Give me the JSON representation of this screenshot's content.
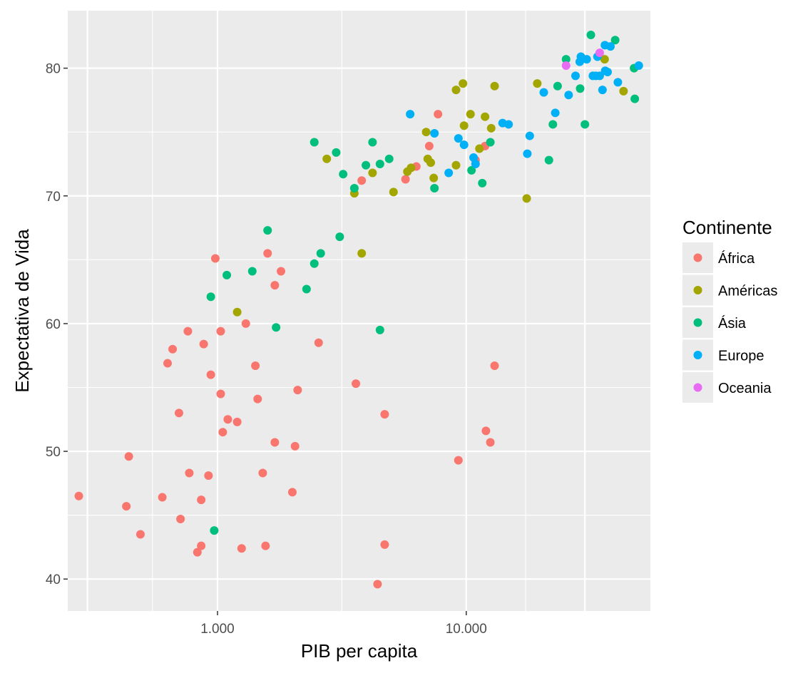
{
  "chart_data": {
    "type": "scatter",
    "xlabel": "PIB per capita",
    "ylabel": "Expectativa de Vida",
    "x_scale": "log10",
    "xlim": [
      250,
      55000
    ],
    "ylim": [
      37.5,
      84.5
    ],
    "x_ticks": [
      1000,
      10000
    ],
    "x_tick_labels": [
      "1.000",
      "10.000"
    ],
    "y_ticks": [
      40,
      50,
      60,
      70,
      80
    ],
    "y_tick_labels": [
      "40",
      "50",
      "60",
      "70",
      "80"
    ],
    "grid": true,
    "legend": {
      "title": "Continente",
      "placement": "right",
      "entries": [
        {
          "label": "África",
          "color": "#F8766D"
        },
        {
          "label": "Américas",
          "color": "#A3A500"
        },
        {
          "label": "Ásia",
          "color": "#00BF7D"
        },
        {
          "label": "Europe",
          "color": "#00B0F6"
        },
        {
          "label": "Oceania",
          "color": "#E76BF3"
        }
      ]
    },
    "series": [
      {
        "name": "África",
        "points": [
          [
            277,
            46.5
          ],
          [
            430,
            45.7
          ],
          [
            440,
            49.6
          ],
          [
            490,
            43.5
          ],
          [
            600,
            46.4
          ],
          [
            630,
            56.9
          ],
          [
            660,
            58.0
          ],
          [
            700,
            53.0
          ],
          [
            710,
            44.7
          ],
          [
            760,
            59.4
          ],
          [
            770,
            48.3
          ],
          [
            830,
            42.1
          ],
          [
            860,
            42.6
          ],
          [
            860,
            46.2
          ],
          [
            880,
            58.4
          ],
          [
            920,
            48.1
          ],
          [
            940,
            56.0
          ],
          [
            980,
            65.1
          ],
          [
            1030,
            54.5
          ],
          [
            1030,
            59.4
          ],
          [
            1050,
            51.5
          ],
          [
            1100,
            52.5
          ],
          [
            1200,
            52.3
          ],
          [
            1250,
            42.4
          ],
          [
            1300,
            60.0
          ],
          [
            1420,
            56.7
          ],
          [
            1450,
            54.1
          ],
          [
            1520,
            48.3
          ],
          [
            1560,
            42.6
          ],
          [
            1590,
            65.5
          ],
          [
            1700,
            63.0
          ],
          [
            1700,
            50.7
          ],
          [
            1800,
            64.1
          ],
          [
            2000,
            46.8
          ],
          [
            2050,
            50.4
          ],
          [
            2100,
            54.8
          ],
          [
            2550,
            58.5
          ],
          [
            3600,
            55.3
          ],
          [
            3800,
            71.2
          ],
          [
            4400,
            39.6
          ],
          [
            4700,
            52.9
          ],
          [
            4700,
            42.7
          ],
          [
            5700,
            71.3
          ],
          [
            6300,
            72.3
          ],
          [
            7100,
            73.9
          ],
          [
            7700,
            76.4
          ],
          [
            9300,
            49.3
          ],
          [
            10900,
            72.8
          ],
          [
            11900,
            73.9
          ],
          [
            12000,
            51.6
          ],
          [
            12500,
            50.7
          ],
          [
            13000,
            56.7
          ]
        ]
      },
      {
        "name": "Américas",
        "points": [
          [
            1200,
            60.9
          ],
          [
            2750,
            72.9
          ],
          [
            3550,
            70.2
          ],
          [
            3800,
            65.5
          ],
          [
            4200,
            71.8
          ],
          [
            5100,
            70.3
          ],
          [
            5800,
            71.9
          ],
          [
            6000,
            72.2
          ],
          [
            6900,
            75.0
          ],
          [
            7000,
            72.9
          ],
          [
            7200,
            72.6
          ],
          [
            7400,
            71.4
          ],
          [
            9100,
            72.4
          ],
          [
            9100,
            78.3
          ],
          [
            9700,
            78.8
          ],
          [
            9800,
            75.5
          ],
          [
            10400,
            76.4
          ],
          [
            11300,
            73.7
          ],
          [
            11900,
            76.2
          ],
          [
            12600,
            75.3
          ],
          [
            13000,
            78.6
          ],
          [
            17500,
            69.8
          ],
          [
            19300,
            78.8
          ],
          [
            36000,
            80.7
          ],
          [
            42900,
            78.2
          ]
        ]
      },
      {
        "name": "Ásia",
        "points": [
          [
            970,
            43.8
          ],
          [
            940,
            62.1
          ],
          [
            1090,
            63.8
          ],
          [
            1380,
            64.1
          ],
          [
            1590,
            67.3
          ],
          [
            1720,
            59.7
          ],
          [
            2280,
            62.7
          ],
          [
            2450,
            64.7
          ],
          [
            2450,
            74.2
          ],
          [
            2600,
            65.5
          ],
          [
            3000,
            73.4
          ],
          [
            3100,
            66.8
          ],
          [
            3200,
            71.7
          ],
          [
            3550,
            70.6
          ],
          [
            3950,
            72.4
          ],
          [
            4200,
            74.2
          ],
          [
            4500,
            59.5
          ],
          [
            4500,
            72.5
          ],
          [
            4900,
            72.9
          ],
          [
            7450,
            70.6
          ],
          [
            10500,
            72.0
          ],
          [
            11600,
            71.0
          ],
          [
            12500,
            74.2
          ],
          [
            21500,
            72.8
          ],
          [
            22300,
            75.6
          ],
          [
            23300,
            78.6
          ],
          [
            25200,
            80.7
          ],
          [
            28700,
            78.4
          ],
          [
            30000,
            75.6
          ],
          [
            31700,
            82.6
          ],
          [
            39700,
            82.2
          ],
          [
            47300,
            80.0
          ],
          [
            47600,
            77.6
          ]
        ]
      },
      {
        "name": "Europe",
        "points": [
          [
            5950,
            76.4
          ],
          [
            7450,
            74.9
          ],
          [
            8500,
            71.8
          ],
          [
            9300,
            74.5
          ],
          [
            9800,
            74.0
          ],
          [
            10700,
            73.0
          ],
          [
            10900,
            72.5
          ],
          [
            14000,
            75.7
          ],
          [
            14800,
            75.6
          ],
          [
            17600,
            73.3
          ],
          [
            18000,
            74.7
          ],
          [
            20500,
            78.1
          ],
          [
            22800,
            76.5
          ],
          [
            25800,
            77.9
          ],
          [
            27500,
            79.4
          ],
          [
            28600,
            80.5
          ],
          [
            28900,
            80.9
          ],
          [
            30500,
            80.7
          ],
          [
            32300,
            79.4
          ],
          [
            33200,
            79.4
          ],
          [
            33700,
            80.9
          ],
          [
            34400,
            79.4
          ],
          [
            35300,
            78.3
          ],
          [
            36100,
            81.8
          ],
          [
            36200,
            79.8
          ],
          [
            37000,
            79.7
          ],
          [
            38000,
            81.7
          ],
          [
            40700,
            78.9
          ],
          [
            49400,
            80.2
          ]
        ]
      },
      {
        "name": "Oceania",
        "points": [
          [
            25200,
            80.2
          ],
          [
            34400,
            81.2
          ]
        ]
      }
    ]
  }
}
